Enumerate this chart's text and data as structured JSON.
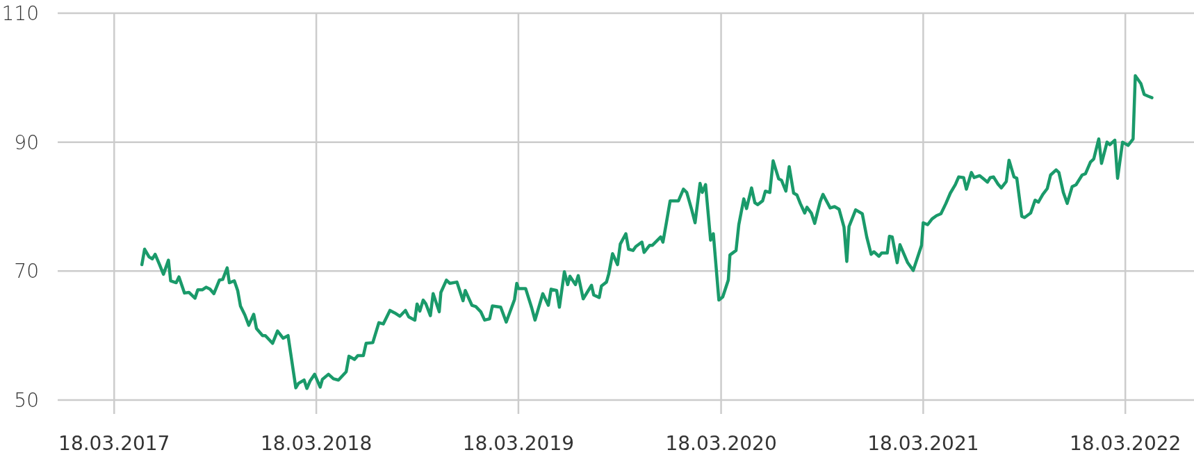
{
  "chart_data": {
    "type": "line",
    "xlim": [
      "2016-12-06",
      "2022-07-20"
    ],
    "ylim": [
      50,
      110
    ],
    "yticks": [
      50,
      70,
      90,
      110
    ],
    "xticks": [
      {
        "value": "2017-03-18",
        "label": "18.03.2017"
      },
      {
        "value": "2018-03-18",
        "label": "18.03.2018"
      },
      {
        "value": "2019-03-18",
        "label": "18.03.2019"
      },
      {
        "value": "2020-03-18",
        "label": "18.03.2020"
      },
      {
        "value": "2021-03-18",
        "label": "18.03.2021"
      },
      {
        "value": "2022-03-18",
        "label": "18.03.2022"
      }
    ],
    "grid": true,
    "marker": "none",
    "line_style": "solid",
    "x": [
      "2017-05-07",
      "2017-05-12",
      "2017-05-20",
      "2017-05-26",
      "2017-05-31",
      "2017-06-08",
      "2017-06-15",
      "2017-06-24",
      "2017-06-28",
      "2017-07-08",
      "2017-07-13",
      "2017-07-23",
      "2017-07-31",
      "2017-08-11",
      "2017-08-16",
      "2017-08-24",
      "2017-08-31",
      "2017-09-07",
      "2017-09-14",
      "2017-09-24",
      "2017-09-30",
      "2017-10-08",
      "2017-10-12",
      "2017-10-21",
      "2017-10-27",
      "2017-11-01",
      "2017-11-09",
      "2017-11-16",
      "2017-11-25",
      "2017-11-30",
      "2017-12-11",
      "2017-12-16",
      "2017-12-29",
      "2018-01-07",
      "2018-01-17",
      "2018-01-26",
      "2018-02-09",
      "2018-02-14",
      "2018-02-24",
      "2018-03-01",
      "2018-03-07",
      "2018-03-15",
      "2018-03-25",
      "2018-03-29",
      "2018-04-09",
      "2018-04-18",
      "2018-04-27",
      "2018-05-11",
      "2018-05-16",
      "2018-05-26",
      "2018-06-01",
      "2018-06-11",
      "2018-06-16",
      "2018-06-28",
      "2018-07-09",
      "2018-07-17",
      "2018-07-29",
      "2018-08-07",
      "2018-08-16",
      "2018-08-26",
      "2018-09-01",
      "2018-09-12",
      "2018-09-16",
      "2018-09-21",
      "2018-09-27",
      "2018-10-02",
      "2018-10-10",
      "2018-10-15",
      "2018-10-26",
      "2018-10-29",
      "2018-11-08",
      "2018-11-14",
      "2018-11-27",
      "2018-12-08",
      "2018-12-12",
      "2018-12-24",
      "2018-12-31",
      "2019-01-09",
      "2019-01-16",
      "2019-01-25",
      "2019-01-30",
      "2019-02-14",
      "2019-02-24",
      "2019-03-11",
      "2019-03-15",
      "2019-03-18",
      "2019-03-31",
      "2019-04-11",
      "2019-04-17",
      "2019-05-01",
      "2019-05-11",
      "2019-05-16",
      "2019-05-26",
      "2019-05-31",
      "2019-06-09",
      "2019-06-15",
      "2019-06-19",
      "2019-06-29",
      "2019-07-04",
      "2019-07-13",
      "2019-07-28",
      "2019-08-01",
      "2019-08-11",
      "2019-08-15",
      "2019-08-24",
      "2019-08-28",
      "2019-09-04",
      "2019-09-13",
      "2019-09-18",
      "2019-09-28",
      "2019-10-03",
      "2019-10-11",
      "2019-10-16",
      "2019-10-27",
      "2019-10-31",
      "2019-11-10",
      "2019-11-15",
      "2019-11-30",
      "2019-12-04",
      "2019-12-10",
      "2019-12-17",
      "2020-01-01",
      "2020-01-10",
      "2020-01-16",
      "2020-01-25",
      "2020-01-31",
      "2020-02-09",
      "2020-02-13",
      "2020-02-19",
      "2020-02-28",
      "2020-03-04",
      "2020-03-14",
      "2020-03-21",
      "2020-03-31",
      "2020-04-03",
      "2020-04-14",
      "2020-04-19",
      "2020-04-28",
      "2020-05-03",
      "2020-05-12",
      "2020-05-18",
      "2020-05-23",
      "2020-06-01",
      "2020-06-06",
      "2020-06-14",
      "2020-06-20",
      "2020-06-30",
      "2020-07-05",
      "2020-07-13",
      "2020-07-19",
      "2020-07-27",
      "2020-08-02",
      "2020-08-08",
      "2020-08-16",
      "2020-08-20",
      "2020-08-28",
      "2020-09-03",
      "2020-09-13",
      "2020-09-18",
      "2020-10-01",
      "2020-10-09",
      "2020-10-17",
      "2020-10-26",
      "2020-10-31",
      "2020-11-04",
      "2020-11-16",
      "2020-11-28",
      "2020-12-06",
      "2020-12-14",
      "2020-12-19",
      "2020-12-28",
      "2021-01-02",
      "2021-01-12",
      "2021-01-16",
      "2021-01-21",
      "2021-01-30",
      "2021-02-04",
      "2021-02-18",
      "2021-02-28",
      "2021-03-15",
      "2021-03-18",
      "2021-03-26",
      "2021-04-03",
      "2021-04-11",
      "2021-04-19",
      "2021-04-28",
      "2021-05-06",
      "2021-05-15",
      "2021-05-21",
      "2021-05-30",
      "2021-06-04",
      "2021-06-13",
      "2021-06-18",
      "2021-06-28",
      "2021-07-05",
      "2021-07-12",
      "2021-07-17",
      "2021-07-23",
      "2021-07-31",
      "2021-08-06",
      "2021-08-15",
      "2021-08-20",
      "2021-08-29",
      "2021-09-03",
      "2021-09-12",
      "2021-09-17",
      "2021-09-28",
      "2021-10-06",
      "2021-10-12",
      "2021-10-20",
      "2021-10-28",
      "2021-11-03",
      "2021-11-13",
      "2021-11-18",
      "2021-11-26",
      "2021-12-03",
      "2021-12-12",
      "2021-12-19",
      "2021-12-30",
      "2022-01-05",
      "2022-01-14",
      "2022-01-20",
      "2022-01-29",
      "2022-02-03",
      "2022-02-13",
      "2022-02-18",
      "2022-02-27",
      "2022-03-04",
      "2022-03-13",
      "2022-03-23",
      "2022-04-01",
      "2022-04-05",
      "2022-04-15",
      "2022-04-21",
      "2022-04-29",
      "2022-05-05"
    ],
    "series": [
      {
        "color": "#1a9a6a",
        "values": [
          71.0,
          73.4,
          72.2,
          71.9,
          72.6,
          71.0,
          69.5,
          71.7,
          68.5,
          68.2,
          69.1,
          66.6,
          66.7,
          65.8,
          67.1,
          67.1,
          67.5,
          67.2,
          66.5,
          68.6,
          68.7,
          70.5,
          68.2,
          68.5,
          67.0,
          64.6,
          63.2,
          61.6,
          63.3,
          61.1,
          60.0,
          60.0,
          58.8,
          60.7,
          59.6,
          60.0,
          51.9,
          52.6,
          53.1,
          51.8,
          53.0,
          54.0,
          52.0,
          53.2,
          54.0,
          53.3,
          53.1,
          54.4,
          56.8,
          56.3,
          56.9,
          56.9,
          58.8,
          58.9,
          62.0,
          61.8,
          63.9,
          63.5,
          63.0,
          63.9,
          62.9,
          62.4,
          64.9,
          63.8,
          65.5,
          64.9,
          63.1,
          66.5,
          63.7,
          66.7,
          68.6,
          68.1,
          68.3,
          65.4,
          67.0,
          64.7,
          64.5,
          63.7,
          62.4,
          62.6,
          64.6,
          64.4,
          62.1,
          65.6,
          68.1,
          67.3,
          67.3,
          64.3,
          62.4,
          66.5,
          64.7,
          67.2,
          67.0,
          64.4,
          69.9,
          67.9,
          69.2,
          67.9,
          69.3,
          65.7,
          67.8,
          66.3,
          65.9,
          67.7,
          68.3,
          69.5,
          72.7,
          71.0,
          74.2,
          75.8,
          73.4,
          73.2,
          73.8,
          74.5,
          72.9,
          74.0,
          74.0,
          75.3,
          74.5,
          77.4,
          80.9,
          80.9,
          82.7,
          82.2,
          79.5,
          77.5,
          83.6,
          82.2,
          83.4,
          74.8,
          75.8,
          65.5,
          66.0,
          68.6,
          72.5,
          73.2,
          77.2,
          81.2,
          79.7,
          82.9,
          80.6,
          80.3,
          80.9,
          82.4,
          82.2,
          87.1,
          84.3,
          84.1,
          82.4,
          86.2,
          82.1,
          81.8,
          80.5,
          79.0,
          79.9,
          79.0,
          77.4,
          80.8,
          81.9,
          79.8,
          80.0,
          79.6,
          76.8,
          71.5,
          76.9,
          79.5,
          78.9,
          75.3,
          72.6,
          73.0,
          72.3,
          72.8,
          72.8,
          75.4,
          75.3,
          71.3,
          74.1,
          71.3,
          70.1,
          74.0,
          77.5,
          77.2,
          78.1,
          78.6,
          78.9,
          80.5,
          82.1,
          83.4,
          84.6,
          84.5,
          82.7,
          85.3,
          84.5,
          84.8,
          84.3,
          83.8,
          84.5,
          84.6,
          83.5,
          82.9,
          83.9,
          87.2,
          84.6,
          84.4,
          78.5,
          78.3,
          79.0,
          81.0,
          80.7,
          81.9,
          82.8,
          84.9,
          85.7,
          85.3,
          82.2,
          80.5,
          83.1,
          83.4,
          84.9,
          85.1,
          86.9,
          87.4,
          90.5,
          86.7,
          90.0,
          89.6,
          90.3,
          84.4,
          90.0,
          89.5,
          90.5,
          100.3,
          99.1,
          97.4,
          97.1,
          96.9
        ]
      }
    ]
  }
}
